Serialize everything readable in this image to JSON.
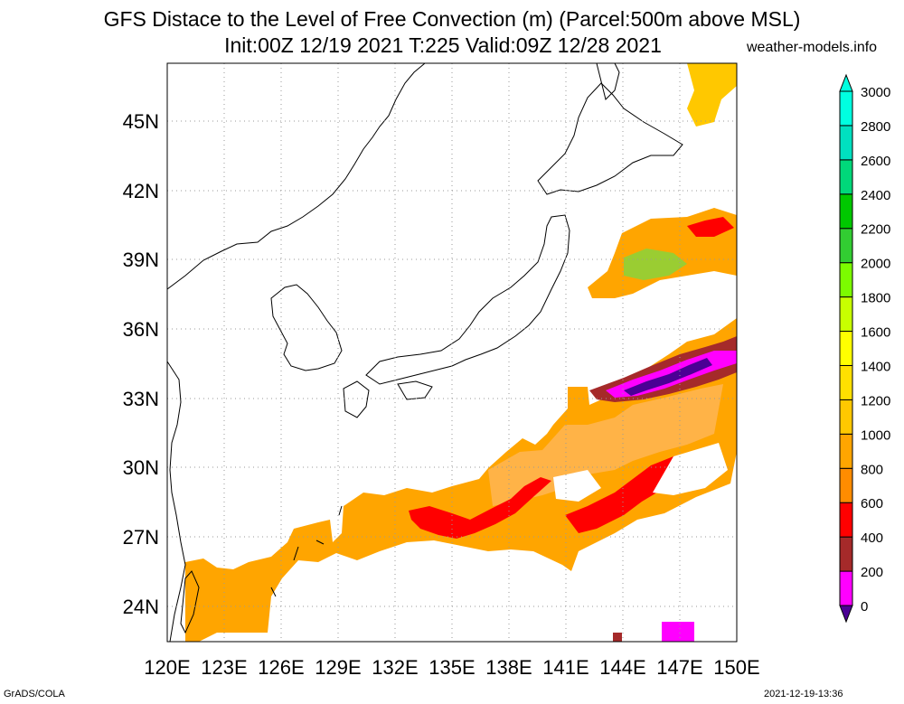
{
  "title": {
    "line1": "GFS Distace to the Level of Free Convection (m) (Parcel:500m above MSL)",
    "line2": "Init:00Z 12/19 2021 T:225 Valid:09Z 12/28 2021"
  },
  "watermark": "weather-models.info",
  "footer": {
    "left": "GrADS/COLA",
    "right": "2021-12-19-13:36"
  },
  "map": {
    "region": "East Asia / Japan",
    "lon_range": [
      120,
      150
    ],
    "lat_range": [
      22.5,
      47.5
    ],
    "lon_labels": [
      "120E",
      "123E",
      "126E",
      "129E",
      "132E",
      "135E",
      "138E",
      "141E",
      "144E",
      "147E",
      "150E"
    ],
    "lat_labels": [
      "24N",
      "27N",
      "30N",
      "33N",
      "36N",
      "39N",
      "42N",
      "45N"
    ],
    "grid": "dotted",
    "coastline_color": "#000000"
  },
  "colorbar": {
    "levels": [
      "0",
      "200",
      "400",
      "600",
      "800",
      "1000",
      "1200",
      "1400",
      "1600",
      "1800",
      "2000",
      "2200",
      "2400",
      "2600",
      "2800",
      "3000"
    ],
    "colors": [
      "#4b0095",
      "#ff00ff",
      "#a52a2a",
      "#ff0000",
      "#ff8c00",
      "#ffa500",
      "#ffc800",
      "#ffe000",
      "#ffff00",
      "#c8ff00",
      "#7cfc00",
      "#32cd32",
      "#00c800",
      "#00d87a",
      "#00e0c0",
      "#00ffe0"
    ]
  }
}
